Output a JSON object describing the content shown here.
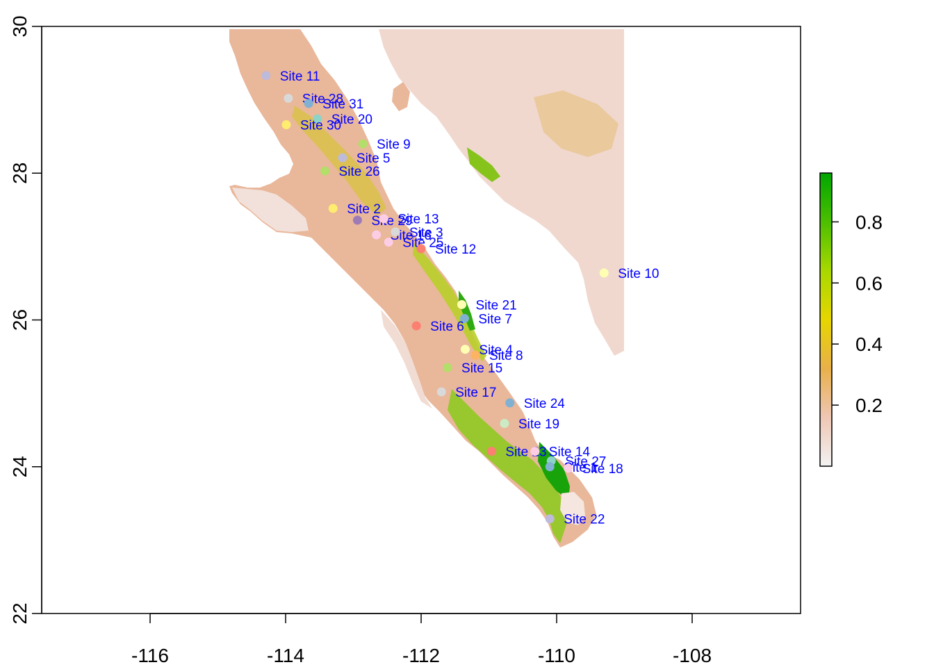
{
  "chart_data": {
    "type": "scatter",
    "title": "",
    "xlabel": "",
    "ylabel": "",
    "xlim": [
      -117.6,
      -106.4
    ],
    "ylim": [
      22,
      30
    ],
    "x_ticks": [
      {
        "value": -116,
        "label": "-116"
      },
      {
        "value": -114,
        "label": "-114"
      },
      {
        "value": -112,
        "label": "-112"
      },
      {
        "value": -110,
        "label": "-110"
      },
      {
        "value": -108,
        "label": "-108"
      }
    ],
    "y_ticks": [
      {
        "value": 22,
        "label": "22"
      },
      {
        "value": 24,
        "label": "24"
      },
      {
        "value": 26,
        "label": "26"
      },
      {
        "value": 28,
        "label": "28"
      },
      {
        "value": 30,
        "label": "30"
      }
    ],
    "raster_extent": {
      "lon": [
        -115.0,
        -109.0
      ],
      "lat": [
        22.9,
        29.95
      ]
    },
    "colorbar": {
      "range": [
        0.0,
        0.96
      ],
      "ticks": [
        {
          "value": 0.2,
          "label": "0.2"
        },
        {
          "value": 0.4,
          "label": "0.4"
        },
        {
          "value": 0.6,
          "label": "0.6"
        },
        {
          "value": 0.8,
          "label": "0.8"
        }
      ],
      "colors": [
        "#f2f2f2",
        "#efc7b4",
        "#e8b04a",
        "#e6d600",
        "#a8d800",
        "#4cbf00",
        "#00a600"
      ]
    },
    "sites": [
      {
        "name": "Site 11",
        "lon": -114.29,
        "lat": 29.33,
        "color": "#bebada"
      },
      {
        "name": "Site 28",
        "lon": -113.96,
        "lat": 29.02,
        "color": "#d9d9d9"
      },
      {
        "name": "Site 31",
        "lon": -113.66,
        "lat": 28.95,
        "color": "#80b1d3"
      },
      {
        "name": "Site 20",
        "lon": -113.53,
        "lat": 28.74,
        "color": "#8dd3c7"
      },
      {
        "name": "Site 30",
        "lon": -113.99,
        "lat": 28.66,
        "color": "#ffed6f"
      },
      {
        "name": "Site 9",
        "lon": -112.86,
        "lat": 28.4,
        "color": "#b3de69"
      },
      {
        "name": "Site 5",
        "lon": -113.16,
        "lat": 28.21,
        "color": "#bebada"
      },
      {
        "name": "Site 26",
        "lon": -113.42,
        "lat": 28.03,
        "color": "#b3de69"
      },
      {
        "name": "Site 2",
        "lon": -113.3,
        "lat": 27.52,
        "color": "#ffed6f"
      },
      {
        "name": "Site 29",
        "lon": -112.94,
        "lat": 27.36,
        "color": "#9e7bb5"
      },
      {
        "name": "Site 13",
        "lon": -112.55,
        "lat": 27.38,
        "color": "#fccde5"
      },
      {
        "name": "Site 16",
        "lon": -112.66,
        "lat": 27.16,
        "color": "#fccde5"
      },
      {
        "name": "Site 3",
        "lon": -112.38,
        "lat": 27.2,
        "color": "#d9d9d9"
      },
      {
        "name": "Site 25",
        "lon": -112.48,
        "lat": 27.06,
        "color": "#fccde5"
      },
      {
        "name": "Site 12",
        "lon": -112.0,
        "lat": 26.97,
        "color": "#fb8072"
      },
      {
        "name": "Site 10",
        "lon": -109.3,
        "lat": 26.64,
        "color": "#ffffb3"
      },
      {
        "name": "Site 21",
        "lon": -111.4,
        "lat": 26.21,
        "color": "#ffffb3"
      },
      {
        "name": "Site 7",
        "lon": -111.36,
        "lat": 26.02,
        "color": "#80b1d3"
      },
      {
        "name": "Site 6",
        "lon": -112.07,
        "lat": 25.92,
        "color": "#fb8072"
      },
      {
        "name": "Site 4",
        "lon": -111.35,
        "lat": 25.6,
        "color": "#ffffb3"
      },
      {
        "name": "Site 8",
        "lon": -111.2,
        "lat": 25.52,
        "color": "#fdb462"
      },
      {
        "name": "Site 15",
        "lon": -111.61,
        "lat": 25.35,
        "color": "#b3de69"
      },
      {
        "name": "Site 17",
        "lon": -111.7,
        "lat": 25.02,
        "color": "#d9d9d9"
      },
      {
        "name": "Site 24",
        "lon": -110.69,
        "lat": 24.87,
        "color": "#80b1d3"
      },
      {
        "name": "Site 19",
        "lon": -110.77,
        "lat": 24.59,
        "color": "#ccebc5"
      },
      {
        "name": "Site 23",
        "lon": -110.96,
        "lat": 24.21,
        "color": "#fb8072"
      },
      {
        "name": "Site 14",
        "lon": -110.32,
        "lat": 24.21,
        "color": "#fccde5"
      },
      {
        "name": "Site 27",
        "lon": -110.08,
        "lat": 24.08,
        "color": "#8dd3c7"
      },
      {
        "name": "Site 1",
        "lon": -110.1,
        "lat": 24.0,
        "color": "#80b1d3"
      },
      {
        "name": "Site 18",
        "lon": -109.83,
        "lat": 23.98,
        "color": "#fccde5"
      },
      {
        "name": "Site 22",
        "lon": -110.1,
        "lat": 23.29,
        "color": "#bebada"
      }
    ]
  }
}
